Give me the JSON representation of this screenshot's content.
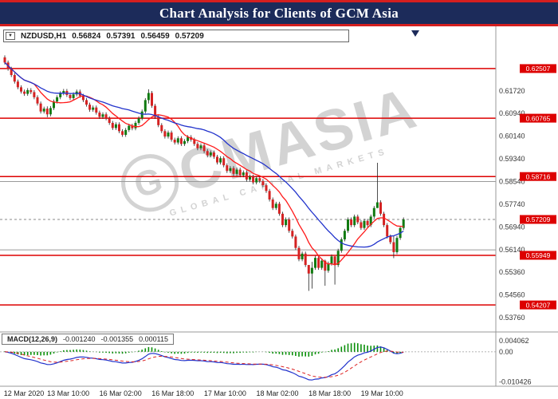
{
  "title_bar": {
    "text": "Chart Analysis for Clients of GCM Asia",
    "bg": "#1c2b5a",
    "accent": "#d41f1f"
  },
  "symbol_info": {
    "symbol": "NZDUSD,H1",
    "open": "0.56824",
    "high": "0.57391",
    "low": "0.56459",
    "close": "0.57209",
    "dropdown_icon": "▼"
  },
  "watermark": {
    "logo_letter": "G",
    "text": "CMASIA",
    "subtext": "GLOBAL CAPITAL MARKETS"
  },
  "chart_data": {
    "type": "candlestick",
    "symbol": "NZDUSD",
    "timeframe": "H1",
    "colors": {
      "up": "#117a11",
      "down": "#d42222",
      "wick": "#222222",
      "ma_fast": "#ff1a1a",
      "ma_slow": "#2233cc",
      "level_red": "#dd0000",
      "level_gray": "#9a9a9a",
      "hist": "#0a8f0a",
      "macd_line": "#2233cc",
      "signal_line": "#dd2222",
      "tag_bg": "#dd0000",
      "tag_text": "#ffffff",
      "axis_text": "#333333"
    },
    "price_axis": {
      "max": 0.6385,
      "min": 0.5337,
      "labels": [
        "0.61720",
        "0.60940",
        "0.60140",
        "0.59340",
        "0.58540",
        "0.57740",
        "0.56940",
        "0.56140",
        "0.55360",
        "0.54560",
        "0.53760"
      ]
    },
    "time_axis": {
      "labels": [
        "12 Mar 2020",
        "13 Mar 10:00",
        "16 Mar 02:00",
        "16 Mar 18:00",
        "17 Mar 10:00",
        "18 Mar 02:00",
        "18 Mar 18:00",
        "19 Mar 10:00"
      ],
      "candles_per_label": 16
    },
    "red_levels": [
      {
        "price": 0.62507,
        "label": "0.62507"
      },
      {
        "price": 0.60765,
        "label": "0.60765"
      },
      {
        "price": 0.58716,
        "label": "0.58716"
      },
      {
        "price": 0.55949,
        "label": "0.55949"
      },
      {
        "price": 0.54207,
        "label": "0.54207"
      }
    ],
    "gray_levels": [
      0.5854,
      0.5614
    ],
    "current_price": {
      "price": 0.57209,
      "label": "0.57209"
    },
    "candles": {
      "first_open": 0.629,
      "default_wick": 0.0007,
      "closes": [
        0.6272,
        0.625,
        0.6228,
        0.6205,
        0.6185,
        0.617,
        0.6162,
        0.6175,
        0.6168,
        0.615,
        0.6128,
        0.61,
        0.611,
        0.609,
        0.6112,
        0.6135,
        0.615,
        0.6164,
        0.6172,
        0.6158,
        0.6147,
        0.616,
        0.617,
        0.6155,
        0.614,
        0.6124,
        0.6106,
        0.6114,
        0.6096,
        0.6081,
        0.609,
        0.6076,
        0.606,
        0.6042,
        0.6055,
        0.6031,
        0.6018,
        0.6035,
        0.605,
        0.6041,
        0.606,
        0.6076,
        0.61,
        0.614,
        0.6165,
        0.612,
        0.6081,
        0.6052,
        0.6031,
        0.6012,
        0.6026,
        0.6001,
        0.5991,
        0.6006,
        0.5986,
        0.5996,
        0.601,
        0.6001,
        0.5986,
        0.5971,
        0.5981,
        0.5961,
        0.5946,
        0.5956,
        0.5941,
        0.5921,
        0.5936,
        0.5911,
        0.5891,
        0.5901,
        0.5881,
        0.5896,
        0.5876,
        0.5886,
        0.5861,
        0.5871,
        0.5851,
        0.5866,
        0.5856,
        0.5841,
        0.5821,
        0.5791,
        0.5761,
        0.5776,
        0.5741,
        0.5701,
        0.5721,
        0.5681,
        0.5661,
        0.5621,
        0.5581,
        0.5601,
        0.5561,
        0.5531,
        0.5551,
        0.5586,
        0.5551,
        0.5576,
        0.5541,
        0.5566,
        0.5591,
        0.5561,
        0.5611,
        0.5651,
        0.5681,
        0.5721,
        0.5701,
        0.5731,
        0.5711,
        0.5691,
        0.5716,
        0.5701,
        0.5731,
        0.5761,
        0.5781,
        0.5741,
        0.5701,
        0.5661,
        0.5641,
        0.5606,
        0.5656,
        0.5691,
        0.5721
      ],
      "wick_overrides": {
        "13": [
          0.6118,
          0.608
        ],
        "44": [
          0.6178,
          0.6128
        ],
        "93": [
          0.556,
          0.547
        ],
        "94": [
          0.5572,
          0.5478
        ],
        "98": [
          0.558,
          0.5488
        ],
        "101": [
          0.5592,
          0.5492
        ],
        "114": [
          0.592,
          0.5772
        ],
        "119": [
          0.5662,
          0.5585
        ]
      }
    },
    "moving_averages": [
      {
        "name": "fast",
        "period": 10,
        "color": "#ff1a1a"
      },
      {
        "name": "slow",
        "period": 24,
        "color": "#2233cc"
      }
    ],
    "macd": {
      "label": "MACD(12,26,9)",
      "value_main": "-0.001240",
      "value_signal": "-0.001355",
      "value_hist": "0.000115",
      "params": [
        12,
        26,
        9
      ],
      "axis_labels": [
        "0.004062",
        "0.00",
        "-0.010426"
      ],
      "range": [
        -0.011,
        0.0045
      ]
    }
  }
}
